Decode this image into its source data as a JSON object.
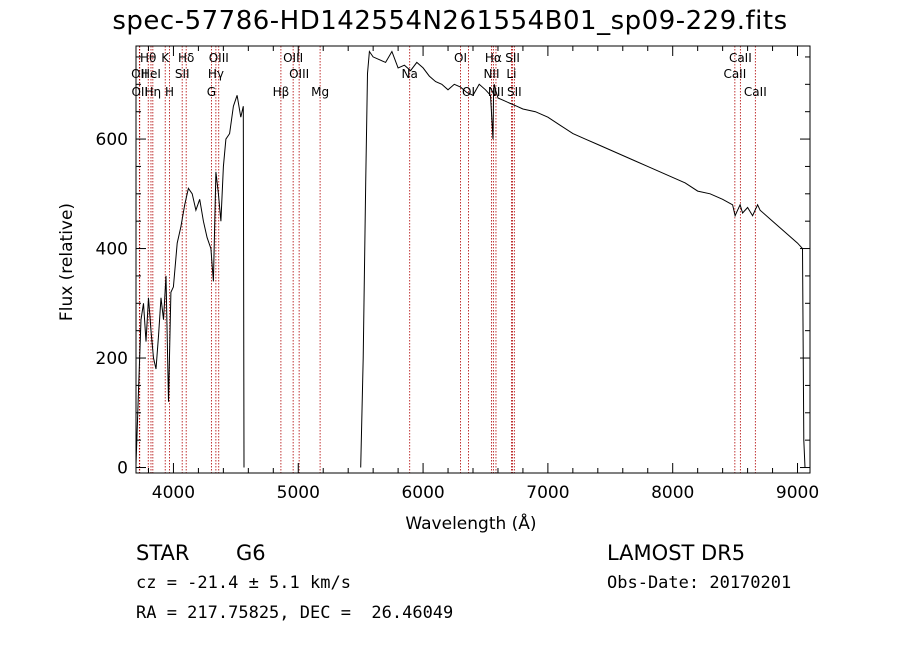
{
  "title": "spec-57786-HD142554N261554B01_sp09-229.fits",
  "info": {
    "class_label": "STAR",
    "subclass_label": "G6",
    "survey": "LAMOST DR5",
    "cz": "cz = -21.4 ± 5.1 km/s",
    "obs_date": "Obs-Date: 20170201",
    "radec": "RA = 217.75825, DEC =  26.46049"
  },
  "chart_data": {
    "type": "line",
    "title": "spec-57786-HD142554N261554B01_sp09-229.fits",
    "xlabel": "Wavelength (Å)",
    "ylabel": "Flux (relative)",
    "xlim": [
      3700,
      9100
    ],
    "ylim": [
      -10,
      770
    ],
    "xticks": [
      4000,
      5000,
      6000,
      7000,
      8000,
      9000
    ],
    "yticks": [
      0,
      200,
      400,
      600
    ],
    "series": [
      {
        "x": [
          3700,
          3720,
          3740,
          3760,
          3780,
          3800,
          3820,
          3840,
          3860,
          3880,
          3900,
          3920,
          3940,
          3960,
          3980,
          4000,
          4030,
          4060,
          4090,
          4120,
          4150,
          4180,
          4210,
          4240,
          4270,
          4300,
          4320,
          4340,
          4360,
          4380,
          4400,
          4420,
          4450,
          4480,
          4510,
          4540,
          4560,
          4565
        ],
        "y": [
          5,
          140,
          270,
          300,
          230,
          310,
          250,
          200,
          180,
          240,
          310,
          270,
          350,
          120,
          320,
          330,
          410,
          440,
          480,
          510,
          500,
          470,
          490,
          450,
          420,
          400,
          340,
          540,
          500,
          450,
          550,
          600,
          610,
          660,
          680,
          640,
          660,
          0
        ]
      },
      {
        "x": [
          5500,
          5520,
          5540,
          5555,
          5570,
          5600,
          5650,
          5700,
          5750,
          5800,
          5850,
          5900,
          5950,
          6000,
          6050,
          6100,
          6150,
          6200,
          6250,
          6300,
          6350,
          6400,
          6450,
          6500,
          6540,
          6560,
          6565,
          6570,
          6580,
          6600,
          6650,
          6700,
          6750,
          6800,
          6900,
          7000,
          7100,
          7200,
          7300,
          7400,
          7500,
          7600,
          7700,
          7800,
          7900,
          8000,
          8100,
          8200,
          8300,
          8400,
          8480,
          8500,
          8520,
          8540,
          8560,
          8600,
          8640,
          8660,
          8680,
          8700,
          8800,
          8900,
          9000,
          9040,
          9050,
          9060
        ],
        "y": [
          0,
          200,
          520,
          720,
          760,
          750,
          745,
          740,
          760,
          730,
          735,
          725,
          740,
          730,
          715,
          705,
          700,
          690,
          700,
          695,
          685,
          680,
          700,
          690,
          680,
          600,
          690,
          700,
          690,
          675,
          670,
          665,
          660,
          655,
          650,
          640,
          625,
          610,
          600,
          590,
          580,
          570,
          560,
          550,
          540,
          530,
          520,
          505,
          500,
          490,
          480,
          460,
          470,
          480,
          465,
          475,
          460,
          470,
          480,
          470,
          450,
          430,
          410,
          400,
          50,
          0
        ]
      }
    ],
    "lines": [
      {
        "name": "Hθ",
        "x": 3798,
        "row": 0
      },
      {
        "name": "OII",
        "x": 3727,
        "row": 1
      },
      {
        "name": "OII",
        "x": 3730,
        "row": 2
      },
      {
        "name": "HeI",
        "x": 3820,
        "row": 1
      },
      {
        "name": "Hη",
        "x": 3835,
        "row": 2
      },
      {
        "name": "K",
        "x": 3934,
        "row": 0
      },
      {
        "name": "SII",
        "x": 4070,
        "row": 1
      },
      {
        "name": "H",
        "x": 3969,
        "row": 2
      },
      {
        "name": "Hδ",
        "x": 4102,
        "row": 0
      },
      {
        "name": "OIII",
        "x": 4363,
        "row": 0
      },
      {
        "name": "Hγ",
        "x": 4340,
        "row": 1
      },
      {
        "name": "G",
        "x": 4304,
        "row": 2
      },
      {
        "name": "Hβ",
        "x": 4861,
        "row": 2
      },
      {
        "name": "OIII",
        "x": 4959,
        "row": 0
      },
      {
        "name": "OIII",
        "x": 5007,
        "row": 1
      },
      {
        "name": "Mg",
        "x": 5175,
        "row": 2
      },
      {
        "name": "Na",
        "x": 5893,
        "row": 1
      },
      {
        "name": "OI",
        "x": 6300,
        "row": 0
      },
      {
        "name": "OI",
        "x": 6364,
        "row": 2
      },
      {
        "name": "Hα",
        "x": 6563,
        "row": 0
      },
      {
        "name": "NII",
        "x": 6548,
        "row": 1
      },
      {
        "name": "NII",
        "x": 6584,
        "row": 2
      },
      {
        "name": "SII",
        "x": 6717,
        "row": 0
      },
      {
        "name": "Li",
        "x": 6708,
        "row": 1
      },
      {
        "name": "SII",
        "x": 6731,
        "row": 2
      },
      {
        "name": "CaII",
        "x": 8542,
        "row": 0
      },
      {
        "name": "CaII",
        "x": 8498,
        "row": 1
      },
      {
        "name": "CaII",
        "x": 8662,
        "row": 2
      }
    ],
    "line_color": "#b00000",
    "grid": false
  }
}
